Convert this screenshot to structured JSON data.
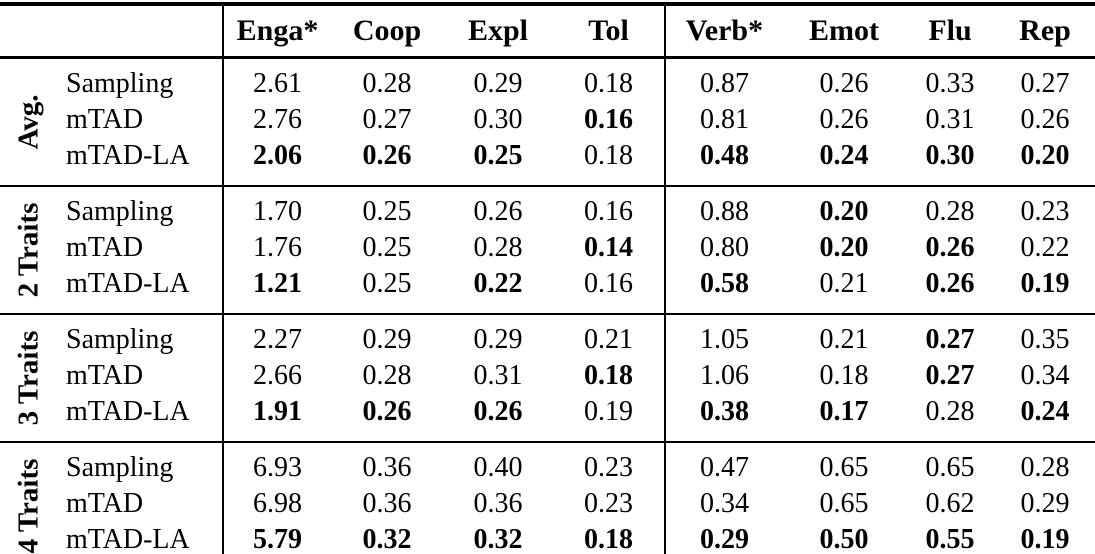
{
  "table": {
    "columns": [
      "Enga*",
      "Coop",
      "Expl",
      "Tol",
      "Verb*",
      "Emot",
      "Flu",
      "Rep"
    ],
    "groups": [
      {
        "label": "Avg.",
        "rows": [
          {
            "method": "Sampling",
            "values": [
              "2.61",
              "0.28",
              "0.29",
              "0.18",
              "0.87",
              "0.26",
              "0.33",
              "0.27"
            ],
            "bold": [
              0,
              0,
              0,
              0,
              0,
              0,
              0,
              0
            ]
          },
          {
            "method": "mTAD",
            "values": [
              "2.76",
              "0.27",
              "0.30",
              "0.16",
              "0.81",
              "0.26",
              "0.31",
              "0.26"
            ],
            "bold": [
              0,
              0,
              0,
              1,
              0,
              0,
              0,
              0
            ]
          },
          {
            "method": "mTAD-LA",
            "values": [
              "2.06",
              "0.26",
              "0.25",
              "0.18",
              "0.48",
              "0.24",
              "0.30",
              "0.20"
            ],
            "bold": [
              1,
              1,
              1,
              0,
              1,
              1,
              1,
              1
            ]
          }
        ]
      },
      {
        "label": "2 Traits",
        "rows": [
          {
            "method": "Sampling",
            "values": [
              "1.70",
              "0.25",
              "0.26",
              "0.16",
              "0.88",
              "0.20",
              "0.28",
              "0.23"
            ],
            "bold": [
              0,
              0,
              0,
              0,
              0,
              1,
              0,
              0
            ]
          },
          {
            "method": "mTAD",
            "values": [
              "1.76",
              "0.25",
              "0.28",
              "0.14",
              "0.80",
              "0.20",
              "0.26",
              "0.22"
            ],
            "bold": [
              0,
              0,
              0,
              1,
              0,
              1,
              1,
              0
            ]
          },
          {
            "method": "mTAD-LA",
            "values": [
              "1.21",
              "0.25",
              "0.22",
              "0.16",
              "0.58",
              "0.21",
              "0.26",
              "0.19"
            ],
            "bold": [
              1,
              0,
              1,
              0,
              1,
              0,
              1,
              1
            ]
          }
        ]
      },
      {
        "label": "3 Traits",
        "rows": [
          {
            "method": "Sampling",
            "values": [
              "2.27",
              "0.29",
              "0.29",
              "0.21",
              "1.05",
              "0.21",
              "0.27",
              "0.35"
            ],
            "bold": [
              0,
              0,
              0,
              0,
              0,
              0,
              1,
              0
            ]
          },
          {
            "method": "mTAD",
            "values": [
              "2.66",
              "0.28",
              "0.31",
              "0.18",
              "1.06",
              "0.18",
              "0.27",
              "0.34"
            ],
            "bold": [
              0,
              0,
              0,
              1,
              0,
              0,
              1,
              0
            ]
          },
          {
            "method": "mTAD-LA",
            "values": [
              "1.91",
              "0.26",
              "0.26",
              "0.19",
              "0.38",
              "0.17",
              "0.28",
              "0.24"
            ],
            "bold": [
              1,
              1,
              1,
              0,
              1,
              1,
              0,
              1
            ]
          }
        ]
      },
      {
        "label": "4 Traits",
        "rows": [
          {
            "method": "Sampling",
            "values": [
              "6.93",
              "0.36",
              "0.40",
              "0.23",
              "0.47",
              "0.65",
              "0.65",
              "0.28"
            ],
            "bold": [
              0,
              0,
              0,
              0,
              0,
              0,
              0,
              0
            ]
          },
          {
            "method": "mTAD",
            "values": [
              "6.98",
              "0.36",
              "0.36",
              "0.23",
              "0.34",
              "0.65",
              "0.62",
              "0.29"
            ],
            "bold": [
              0,
              0,
              0,
              0,
              0,
              0,
              0,
              0
            ]
          },
          {
            "method": "mTAD-LA",
            "values": [
              "5.79",
              "0.32",
              "0.32",
              "0.18",
              "0.29",
              "0.50",
              "0.55",
              "0.19"
            ],
            "bold": [
              1,
              1,
              1,
              1,
              1,
              1,
              1,
              1
            ]
          }
        ]
      }
    ],
    "colors": {
      "text": "#000000",
      "background": "#ffffff",
      "rule": "#000000"
    }
  }
}
